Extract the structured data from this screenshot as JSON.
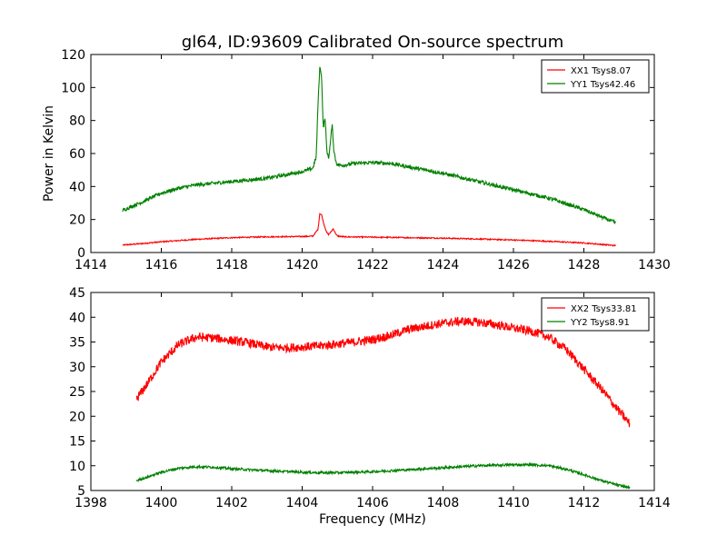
{
  "figure": {
    "title": "gl64, ID:93609 Calibrated On-source spectrum"
  },
  "chart_data": [
    {
      "type": "line",
      "title": "gl64, ID:93609 Calibrated On-source spectrum",
      "xlabel": "",
      "ylabel": "Power in Kelvin",
      "xlim": [
        1414,
        1430
      ],
      "ylim": [
        0,
        120
      ],
      "xticks": [
        1414,
        1416,
        1418,
        1420,
        1422,
        1424,
        1426,
        1428,
        1430
      ],
      "yticks": [
        0,
        20,
        40,
        60,
        80,
        100,
        120
      ],
      "grid": false,
      "legend_position": "top-right",
      "series": [
        {
          "name": "XX1 Tsys8.07",
          "color": "#ff0000",
          "x": [
            1414.9,
            1415.5,
            1416.0,
            1417.0,
            1418.0,
            1419.0,
            1420.0,
            1420.3,
            1420.45,
            1420.5,
            1420.55,
            1420.62,
            1420.7,
            1420.75,
            1420.82,
            1420.88,
            1420.95,
            1421.0,
            1421.2,
            1422.0,
            1423.0,
            1424.0,
            1425.0,
            1426.0,
            1427.0,
            1428.0,
            1428.9
          ],
          "values": [
            4.5,
            5.5,
            6.5,
            8.0,
            9.0,
            9.5,
            9.7,
            9.9,
            14.0,
            23.5,
            23.0,
            17.0,
            12.0,
            11.0,
            12.5,
            14.5,
            11.5,
            10.0,
            9.5,
            9.3,
            9.0,
            8.7,
            8.2,
            7.6,
            6.8,
            5.8,
            4.2
          ]
        },
        {
          "name": "YY1 Tsys42.46",
          "color": "#008000",
          "x": [
            1414.9,
            1415.5,
            1416.0,
            1416.5,
            1417.0,
            1418.0,
            1419.0,
            1419.5,
            1420.0,
            1420.3,
            1420.4,
            1420.45,
            1420.5,
            1420.55,
            1420.6,
            1420.65,
            1420.7,
            1420.75,
            1420.8,
            1420.85,
            1420.9,
            1420.95,
            1421.0,
            1421.2,
            1421.5,
            1422.0,
            1422.5,
            1423.0,
            1424.0,
            1425.0,
            1426.0,
            1426.5,
            1427.0,
            1428.0,
            1428.9
          ],
          "values": [
            25.5,
            31.0,
            36.0,
            39.0,
            41.0,
            43.0,
            45.0,
            47.0,
            49.0,
            51.0,
            58.0,
            90.0,
            112.0,
            108.0,
            75.0,
            82.0,
            62.0,
            57.0,
            66.0,
            78.0,
            62.0,
            56.0,
            53.0,
            53.0,
            54.0,
            54.5,
            54.0,
            52.0,
            48.0,
            43.0,
            38.0,
            35.5,
            33.0,
            26.0,
            18.0
          ]
        }
      ]
    },
    {
      "type": "line",
      "title": "",
      "xlabel": "Frequency (MHz)",
      "ylabel": "",
      "xlim": [
        1398,
        1414
      ],
      "ylim": [
        5,
        45
      ],
      "xticks": [
        1398,
        1400,
        1402,
        1404,
        1406,
        1408,
        1410,
        1412,
        1414
      ],
      "yticks": [
        5,
        10,
        15,
        20,
        25,
        30,
        35,
        40,
        45
      ],
      "grid": false,
      "legend_position": "top-right",
      "series": [
        {
          "name": "XX2 Tsys33.81",
          "color": "#ff0000",
          "x": [
            1399.3,
            1399.6,
            1400.0,
            1400.5,
            1401.0,
            1401.5,
            1402.0,
            1402.5,
            1403.0,
            1403.5,
            1404.0,
            1404.5,
            1405.0,
            1405.5,
            1406.0,
            1406.5,
            1407.0,
            1407.5,
            1408.0,
            1408.5,
            1409.0,
            1409.5,
            1410.0,
            1410.5,
            1411.0,
            1411.5,
            1412.0,
            1412.5,
            1413.0,
            1413.3
          ],
          "values": [
            23.5,
            26.5,
            31.0,
            34.5,
            36.0,
            35.8,
            35.3,
            34.8,
            34.0,
            33.8,
            34.0,
            34.2,
            34.6,
            35.0,
            35.5,
            36.3,
            37.5,
            38.2,
            38.8,
            39.2,
            39.0,
            38.5,
            37.8,
            37.2,
            36.0,
            33.5,
            29.5,
            25.5,
            21.0,
            18.5
          ]
        },
        {
          "name": "YY2 Tsys8.91",
          "color": "#008000",
          "x": [
            1399.3,
            1399.6,
            1400.0,
            1400.5,
            1401.0,
            1401.5,
            1402.0,
            1403.0,
            1404.0,
            1404.5,
            1405.0,
            1406.0,
            1407.0,
            1408.0,
            1409.0,
            1410.0,
            1410.5,
            1411.0,
            1411.5,
            1412.0,
            1412.5,
            1413.0,
            1413.3
          ],
          "values": [
            7.0,
            7.7,
            8.7,
            9.5,
            9.8,
            9.7,
            9.4,
            9.0,
            8.7,
            8.6,
            8.6,
            8.8,
            9.2,
            9.6,
            10.0,
            10.2,
            10.2,
            10.0,
            9.3,
            8.2,
            7.0,
            6.0,
            5.6
          ]
        }
      ]
    }
  ]
}
